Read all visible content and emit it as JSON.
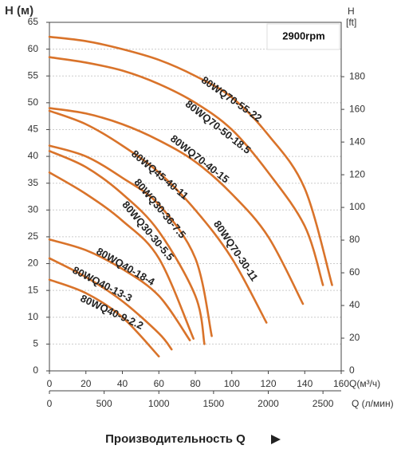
{
  "chart_data": {
    "type": "line",
    "y_label": "H (м)",
    "y2_label": [
      "H",
      "[ft]"
    ],
    "x_label": "Q(м³/ч)",
    "x2_label": "Q (л/мин)",
    "footer": "Производительность Q",
    "annotation": "2900rpm",
    "xlim": [
      0,
      160
    ],
    "xticks": [
      0,
      20,
      40,
      60,
      80,
      100,
      120,
      140,
      160
    ],
    "x2lim": [
      0,
      2666.67
    ],
    "x2ticks": [
      0,
      500,
      1000,
      1500,
      2000,
      2500
    ],
    "ylim": [
      0,
      65
    ],
    "yticks": [
      0,
      5,
      10,
      15,
      20,
      25,
      30,
      35,
      40,
      45,
      50,
      55,
      60,
      65
    ],
    "y2lim": [
      0,
      213.25
    ],
    "y2ticks": [
      0,
      20,
      40,
      60,
      80,
      100,
      120,
      140,
      160,
      180
    ],
    "grid": true,
    "series": [
      {
        "name": "80WQ70-55-22",
        "color": "#d9732a",
        "x": [
          0,
          20,
          40,
          60,
          80,
          100,
          120,
          140,
          155
        ],
        "values": [
          62.3,
          61.5,
          60,
          58,
          55,
          51,
          44,
          34,
          16
        ]
      },
      {
        "name": "80WQ70-50-18.5",
        "color": "#d9732a",
        "x": [
          0,
          20,
          40,
          60,
          80,
          100,
          120,
          140,
          150
        ],
        "values": [
          58.5,
          57.5,
          56,
          53.5,
          50,
          45,
          37,
          27,
          16
        ]
      },
      {
        "name": "80WQ70-40-15",
        "color": "#d9732a",
        "x": [
          0,
          20,
          40,
          60,
          80,
          100,
          120,
          139
        ],
        "values": [
          49,
          48,
          46,
          43,
          39,
          33,
          25,
          12.5
        ]
      },
      {
        "name": "80WQ70-30-11",
        "color": "#d9732a",
        "x": [
          0,
          20,
          40,
          60,
          80,
          100,
          119
        ],
        "values": [
          48.5,
          46,
          42,
          37,
          30,
          21,
          9
        ]
      },
      {
        "name": "80WQ45-40-11",
        "color": "#d9732a",
        "x": [
          0,
          20,
          40,
          60,
          80,
          89
        ],
        "values": [
          42,
          40,
          36,
          31,
          21,
          6.5
        ]
      },
      {
        "name": "80WQ30-36-7.5",
        "color": "#d9732a",
        "x": [
          0,
          20,
          40,
          60,
          80,
          85
        ],
        "values": [
          41,
          38,
          33,
          26,
          14,
          5
        ]
      },
      {
        "name": "80WQ30-30-5.5",
        "color": "#d9732a",
        "x": [
          0,
          20,
          40,
          60,
          79
        ],
        "values": [
          37,
          33,
          28,
          21,
          6
        ]
      },
      {
        "name": "80WQ40-18-4",
        "color": "#d9732a",
        "x": [
          0,
          20,
          40,
          60,
          77
        ],
        "values": [
          24.5,
          22.5,
          19,
          14,
          5.7
        ]
      },
      {
        "name": "80WQ40-13-3",
        "color": "#d9732a",
        "x": [
          0,
          20,
          40,
          60,
          67
        ],
        "values": [
          21,
          17.5,
          13,
          7,
          4
        ]
      },
      {
        "name": "80WQ40-9-2.2",
        "color": "#d9732a",
        "x": [
          0,
          20,
          40,
          60
        ],
        "values": [
          17,
          14.5,
          10,
          2.7
        ]
      }
    ]
  }
}
